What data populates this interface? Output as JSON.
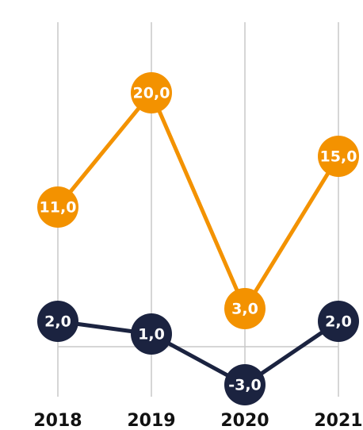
{
  "chart_data": {
    "type": "line",
    "categories": [
      "2018",
      "2019",
      "2020",
      "2021"
    ],
    "series": [
      {
        "name": null,
        "color": "#f39200",
        "values": [
          11,
          20,
          3,
          15
        ],
        "value_labels": [
          "11,0",
          "20,0",
          "3,0",
          "15,0"
        ]
      },
      {
        "name": null,
        "color": "#1b2340",
        "values": [
          2,
          1,
          -3,
          2
        ],
        "value_labels": [
          "2,0",
          "1,0",
          "-3,0",
          "2,0"
        ]
      }
    ],
    "ylim": [
      -4,
      26
    ],
    "yticks": [
      0
    ],
    "grid": true
  }
}
